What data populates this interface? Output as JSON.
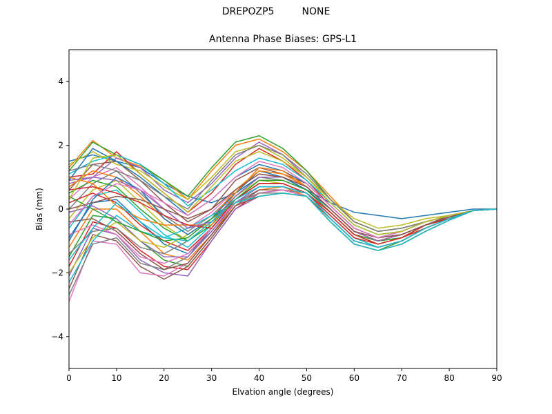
{
  "figure": {
    "suptitle": "DREPOZP5         NONE"
  },
  "chart_data": {
    "type": "line",
    "title": "Antenna Phase Biases: GPS-L1",
    "xlabel": "Elvation angle (degrees)",
    "ylabel": "Bias (mm)",
    "xlim": [
      0,
      90
    ],
    "ylim": [
      -5,
      5
    ],
    "xticks": [
      "0",
      "10",
      "20",
      "30",
      "40",
      "50",
      "60",
      "70",
      "80",
      "90"
    ],
    "yticks": [
      "−4",
      "−2",
      "0",
      "2",
      "4"
    ],
    "grid": false,
    "legend": "none",
    "x": [
      0,
      5,
      10,
      15,
      20,
      25,
      30,
      35,
      40,
      45,
      50,
      55,
      60,
      65,
      70,
      75,
      80,
      85,
      90
    ],
    "colors": [
      "#1f77b4",
      "#ff7f0e",
      "#2ca02c",
      "#d62728",
      "#9467bd",
      "#8c564b",
      "#e377c2",
      "#7f7f7f",
      "#bcbd22",
      "#17becf"
    ],
    "series": [
      {
        "values": [
          1.5,
          1.7,
          1.5,
          1.3,
          0.8,
          0.4,
          0.2,
          0.5,
          1.2,
          1.0,
          0.6,
          0.2,
          -0.1,
          -0.2,
          -0.3,
          -0.2,
          -0.1,
          0.0,
          0.0
        ]
      },
      {
        "values": [
          1.3,
          2.15,
          1.6,
          1.35,
          0.9,
          0.3,
          1.2,
          2.0,
          2.2,
          1.8,
          1.2,
          0.4,
          -0.4,
          -0.7,
          -0.6,
          -0.4,
          -0.2,
          -0.05,
          0.0
        ]
      },
      {
        "values": [
          1.2,
          2.1,
          1.7,
          1.4,
          0.9,
          0.4,
          1.3,
          2.1,
          2.3,
          1.9,
          1.2,
          0.3,
          -0.4,
          -0.7,
          -0.6,
          -0.4,
          -0.2,
          -0.05,
          0.0
        ]
      },
      {
        "values": [
          1.0,
          1.1,
          1.8,
          1.1,
          0.5,
          -0.1,
          0.5,
          1.4,
          1.9,
          1.5,
          0.9,
          0.1,
          -0.6,
          -0.9,
          -0.7,
          -0.4,
          -0.2,
          -0.05,
          0.0
        ]
      },
      {
        "values": [
          0.8,
          1.0,
          1.6,
          1.3,
          0.6,
          0.2,
          0.8,
          1.6,
          2.1,
          1.7,
          1.0,
          0.2,
          -0.5,
          -0.8,
          -0.7,
          -0.4,
          -0.2,
          -0.05,
          0.0
        ]
      },
      {
        "values": [
          0.6,
          1.4,
          1.5,
          0.9,
          0.2,
          -0.4,
          0.0,
          0.9,
          1.3,
          1.1,
          0.8,
          0.1,
          -0.6,
          -0.9,
          -0.8,
          -0.5,
          -0.2,
          -0.05,
          0.0
        ]
      },
      {
        "values": [
          0.3,
          1.0,
          1.3,
          0.7,
          0.0,
          -0.6,
          -0.1,
          0.6,
          1.1,
          1.0,
          0.7,
          0.0,
          -0.7,
          -1.0,
          -0.8,
          -0.5,
          -0.3,
          -0.05,
          0.0
        ]
      },
      {
        "values": [
          0.0,
          0.8,
          1.2,
          0.5,
          -0.2,
          -0.7,
          -0.2,
          0.5,
          1.0,
          0.9,
          0.6,
          -0.1,
          -0.8,
          -1.0,
          -0.9,
          -0.5,
          -0.3,
          -0.05,
          0.0
        ]
      },
      {
        "values": [
          -0.3,
          0.6,
          0.9,
          0.2,
          -0.5,
          -1.0,
          -0.4,
          0.4,
          0.9,
          0.8,
          0.5,
          -0.2,
          -0.9,
          -1.1,
          -0.9,
          -0.6,
          -0.3,
          -0.05,
          0.0
        ]
      },
      {
        "values": [
          -0.6,
          0.4,
          0.6,
          -0.1,
          -0.8,
          -1.2,
          -0.5,
          0.3,
          0.8,
          0.8,
          0.5,
          -0.2,
          -0.9,
          -1.2,
          -1.0,
          -0.6,
          -0.3,
          -0.05,
          0.0
        ]
      },
      {
        "values": [
          -0.9,
          0.2,
          0.3,
          -0.4,
          -1.1,
          -1.4,
          -0.7,
          0.2,
          0.7,
          0.7,
          0.5,
          -0.3,
          -1.0,
          -1.2,
          -1.0,
          -0.6,
          -0.3,
          -0.05,
          0.0
        ]
      },
      {
        "values": [
          -1.2,
          0.0,
          0.0,
          -0.7,
          -1.4,
          -1.6,
          -0.8,
          0.2,
          0.6,
          0.7,
          0.4,
          -0.3,
          -1.0,
          -1.2,
          -1.0,
          -0.6,
          -0.3,
          -0.05,
          0.0
        ]
      },
      {
        "values": [
          -1.5,
          -0.2,
          -0.3,
          -1.0,
          -1.6,
          -1.8,
          -0.9,
          0.1,
          0.5,
          0.6,
          0.4,
          -0.4,
          -1.1,
          -1.3,
          -1.0,
          -0.6,
          -0.3,
          -0.05,
          0.0
        ]
      },
      {
        "values": [
          -1.8,
          -0.4,
          -0.6,
          -1.3,
          -1.8,
          -1.9,
          -1.0,
          0.0,
          0.5,
          0.6,
          0.4,
          -0.4,
          -1.1,
          -1.3,
          -1.1,
          -0.7,
          -0.35,
          -0.05,
          0.0
        ]
      },
      {
        "values": [
          -2.1,
          -0.6,
          -0.8,
          -1.6,
          -2.0,
          -2.1,
          -1.0,
          0.0,
          0.4,
          0.5,
          0.4,
          -0.4,
          -1.1,
          -1.3,
          -1.1,
          -0.7,
          -0.35,
          -0.05,
          0.0
        ]
      },
      {
        "values": [
          -2.5,
          -0.8,
          -1.0,
          -1.8,
          -2.2,
          -1.8,
          -0.9,
          0.1,
          0.4,
          0.5,
          0.4,
          -0.4,
          -1.1,
          -1.3,
          -1.1,
          -0.7,
          -0.35,
          -0.05,
          0.0
        ]
      },
      {
        "values": [
          -2.9,
          -1.0,
          -1.1,
          -2.0,
          -2.1,
          -1.7,
          -0.8,
          0.1,
          0.5,
          0.6,
          0.4,
          -0.4,
          -1.1,
          -1.3,
          -1.1,
          -0.7,
          -0.35,
          -0.05,
          0.0
        ]
      },
      {
        "values": [
          -2.7,
          -1.1,
          -0.9,
          -1.7,
          -1.9,
          -1.5,
          -0.6,
          0.2,
          0.6,
          0.6,
          0.5,
          -0.3,
          -1.0,
          -1.2,
          -1.0,
          -0.6,
          -0.3,
          -0.05,
          0.0
        ]
      },
      {
        "values": [
          1.4,
          1.8,
          1.4,
          1.2,
          0.7,
          0.3,
          1.0,
          1.8,
          2.0,
          1.6,
          1.0,
          0.3,
          -0.3,
          -0.6,
          -0.5,
          -0.3,
          -0.2,
          -0.05,
          0.0
        ]
      },
      {
        "values": [
          1.1,
          1.5,
          1.7,
          1.4,
          0.8,
          0.1,
          0.6,
          1.2,
          1.6,
          1.4,
          0.9,
          0.2,
          -0.5,
          -0.8,
          -0.7,
          -0.4,
          -0.2,
          -0.05,
          0.0
        ]
      },
      {
        "values": [
          0.9,
          1.9,
          1.5,
          1.0,
          0.4,
          -0.2,
          0.3,
          1.0,
          1.4,
          1.2,
          0.8,
          0.1,
          -0.6,
          -0.9,
          -0.7,
          -0.4,
          -0.2,
          -0.05,
          0.0
        ]
      },
      {
        "values": [
          0.7,
          1.2,
          1.0,
          0.4,
          -0.3,
          -0.8,
          -0.3,
          0.6,
          1.2,
          1.1,
          0.7,
          0.0,
          -0.7,
          -1.0,
          -0.8,
          -0.5,
          -0.25,
          -0.05,
          0.0
        ]
      },
      {
        "values": [
          0.5,
          0.9,
          0.7,
          0.0,
          -0.6,
          -1.0,
          -0.5,
          0.4,
          1.0,
          1.0,
          0.6,
          -0.1,
          -0.8,
          -1.0,
          -0.9,
          -0.5,
          -0.25,
          -0.05,
          0.0
        ]
      },
      {
        "values": [
          0.2,
          0.5,
          0.2,
          -0.5,
          -1.0,
          -1.3,
          -0.6,
          0.3,
          0.8,
          0.8,
          0.5,
          -0.2,
          -0.9,
          -1.1,
          -0.9,
          -0.6,
          -0.3,
          -0.05,
          0.0
        ]
      },
      {
        "values": [
          -0.1,
          0.1,
          -0.3,
          -1.0,
          -1.5,
          -1.5,
          -0.7,
          0.2,
          0.7,
          0.7,
          0.5,
          -0.3,
          -1.0,
          -1.2,
          -1.0,
          -0.6,
          -0.3,
          -0.05,
          0.0
        ]
      },
      {
        "values": [
          -0.4,
          -0.3,
          -0.7,
          -1.4,
          -1.9,
          -1.7,
          -0.8,
          0.1,
          0.6,
          0.6,
          0.4,
          -0.3,
          -1.0,
          -1.2,
          -1.0,
          -0.6,
          -0.3,
          -0.05,
          0.0
        ]
      },
      {
        "values": [
          -0.8,
          -0.5,
          -0.8,
          -1.5,
          -1.7,
          -1.4,
          -0.6,
          0.2,
          0.5,
          0.6,
          0.4,
          -0.4,
          -1.1,
          -1.3,
          -1.1,
          -0.7,
          -0.35,
          -0.05,
          0.0
        ]
      },
      {
        "values": [
          -1.4,
          -0.7,
          -0.6,
          -1.2,
          -1.4,
          -1.0,
          -0.4,
          0.2,
          0.5,
          0.5,
          0.4,
          -0.4,
          -1.1,
          -1.3,
          -1.1,
          -0.7,
          -0.35,
          -0.05,
          0.0
        ]
      },
      {
        "values": [
          -2.0,
          -0.9,
          -0.4,
          -1.0,
          -1.2,
          -0.8,
          -0.3,
          0.2,
          0.4,
          0.5,
          0.4,
          -0.4,
          -1.1,
          -1.3,
          -1.1,
          -0.7,
          -0.35,
          -0.05,
          0.0
        ]
      },
      {
        "values": [
          -2.3,
          -1.0,
          -0.2,
          -0.7,
          -0.9,
          -0.6,
          -0.2,
          0.2,
          0.4,
          0.5,
          0.4,
          -0.4,
          -1.1,
          -1.3,
          -1.1,
          -0.7,
          -0.35,
          -0.05,
          0.0
        ]
      },
      {
        "values": [
          -1.0,
          0.3,
          1.0,
          0.6,
          -0.3,
          -0.8,
          -0.3,
          0.5,
          1.0,
          1.0,
          0.6,
          0.0,
          -0.7,
          -1.0,
          -0.8,
          -0.5,
          -0.25,
          -0.05,
          0.0
        ]
      },
      {
        "values": [
          1.0,
          0.8,
          0.1,
          -0.3,
          -0.5,
          -0.5,
          -0.5,
          0.5,
          1.3,
          1.2,
          0.7,
          0.0,
          -0.7,
          -1.0,
          -0.8,
          -0.5,
          -0.25,
          -0.05,
          0.0
        ]
      },
      {
        "values": [
          0.4,
          0.0,
          -0.4,
          -0.7,
          -1.0,
          -0.9,
          -0.3,
          0.3,
          0.9,
          0.9,
          0.6,
          -0.1,
          -0.8,
          -1.1,
          -0.9,
          -0.5,
          -0.3,
          -0.05,
          0.0
        ]
      },
      {
        "values": [
          0.6,
          0.7,
          0.5,
          0.2,
          -0.2,
          -0.5,
          -0.6,
          0.3,
          0.8,
          0.8,
          0.5,
          -0.1,
          -0.8,
          -1.1,
          -0.9,
          -0.5,
          -0.3,
          -0.05,
          0.0
        ]
      },
      {
        "values": [
          0.9,
          1.0,
          0.9,
          0.6,
          0.0,
          -0.6,
          -0.4,
          0.4,
          1.0,
          1.0,
          0.7,
          0.0,
          -0.7,
          -1.0,
          -0.8,
          -0.5,
          -0.25,
          -0.05,
          0.0
        ]
      },
      {
        "values": [
          0.0,
          0.2,
          0.4,
          0.3,
          0.0,
          -0.3,
          0.0,
          0.6,
          1.1,
          1.0,
          0.7,
          0.0,
          -0.7,
          -0.9,
          -0.8,
          -0.5,
          -0.25,
          -0.05,
          0.0
        ]
      },
      {
        "values": [
          -0.5,
          0.4,
          0.8,
          0.6,
          0.2,
          -0.2,
          0.3,
          1.0,
          1.5,
          1.3,
          0.8,
          0.1,
          -0.6,
          -0.9,
          -0.7,
          -0.4,
          -0.2,
          -0.05,
          0.0
        ]
      },
      {
        "values": [
          1.2,
          1.4,
          1.2,
          0.9,
          0.4,
          0.0,
          0.9,
          1.7,
          2.0,
          1.7,
          1.1,
          0.3,
          -0.4,
          -0.7,
          -0.6,
          -0.4,
          -0.2,
          -0.05,
          0.0
        ]
      },
      {
        "values": [
          0.3,
          1.6,
          1.7,
          1.1,
          0.5,
          -0.1,
          0.7,
          1.5,
          1.8,
          1.5,
          1.0,
          0.2,
          -0.5,
          -0.8,
          -0.7,
          -0.4,
          -0.2,
          -0.05,
          0.0
        ]
      },
      {
        "values": [
          -1.6,
          -0.6,
          0.2,
          -0.4,
          -0.9,
          -1.0,
          -0.4,
          0.3,
          0.7,
          0.7,
          0.5,
          -0.3,
          -1.0,
          -1.2,
          -1.0,
          -0.6,
          -0.3,
          -0.05,
          0.0
        ]
      }
    ]
  }
}
